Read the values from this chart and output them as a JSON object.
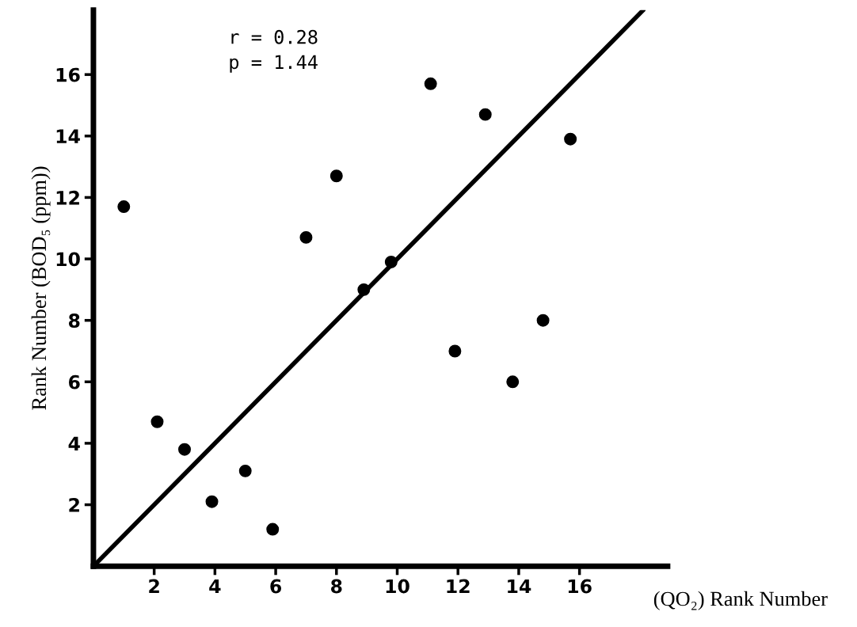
{
  "chart_data": {
    "type": "scatter",
    "xlabel": "(QO₂) Rank Number",
    "ylabel": "Rank Number (BOD₅ (ppm))",
    "annotations": [
      "r = 0.28",
      "p = 1.44"
    ],
    "xlim": [
      0,
      18.9
    ],
    "ylim": [
      0,
      18.1
    ],
    "xticks": [
      2,
      4,
      6,
      8,
      10,
      12,
      14,
      16
    ],
    "yticks": [
      2,
      4,
      6,
      8,
      10,
      12,
      14,
      16
    ],
    "grid": false,
    "legend": false,
    "marker": "circle",
    "series": [
      {
        "color": "#000000",
        "x": [
          1,
          2.1,
          3,
          3.9,
          5,
          5.9,
          7,
          8,
          8.9,
          9.8,
          11.1,
          11.9,
          12.9,
          13.8,
          14.8,
          15.7
        ],
        "values": [
          11.7,
          4.7,
          3.8,
          2.1,
          3.1,
          1.2,
          10.7,
          12.7,
          9.0,
          9.9,
          15.7,
          7.0,
          14.7,
          6.0,
          8.0,
          13.9
        ]
      },
      {
        "type": "line",
        "color": "#000000",
        "x": [
          0,
          18.1
        ],
        "values": [
          0,
          18.1
        ],
        "marker": "none",
        "line_style": "solid"
      }
    ]
  }
}
